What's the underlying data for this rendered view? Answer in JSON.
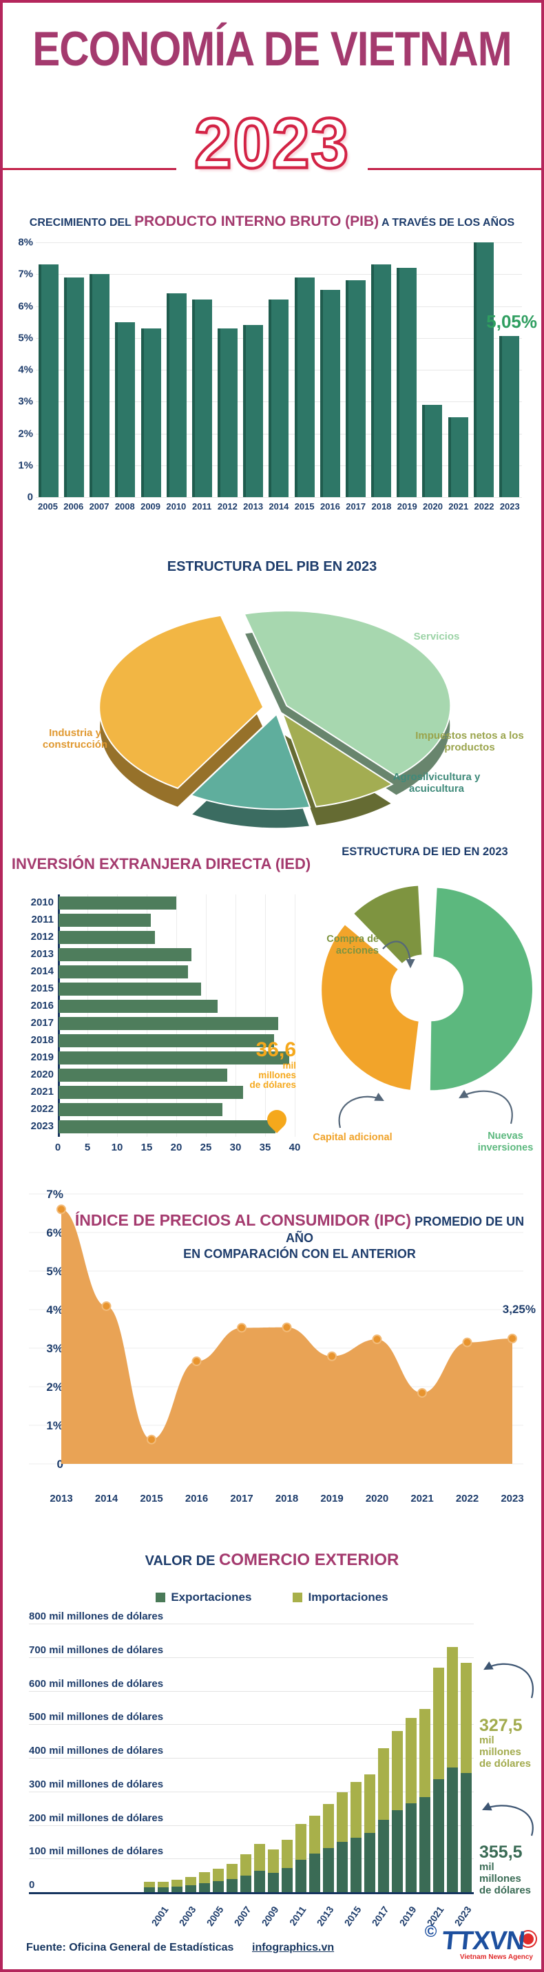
{
  "page": {
    "title": "ECONOMÍA DE VIETNAM",
    "year": "2023"
  },
  "colors": {
    "border": "#b4265c",
    "magenta": "#a43a6e",
    "navy": "#1d3c6b",
    "red_outline": "#d32345",
    "gdp_bar": "#2e7767",
    "ied_bar": "#4e7d5c",
    "orange": "#f5a81c",
    "olive": "#a8b04a",
    "green": "#5cb87e",
    "export_green": "#3a6b55",
    "area_orange": "#e9a355",
    "dot_orange": "#e8942e",
    "growth_green": "#2f9e60"
  },
  "chart_data": [
    {
      "id": "pib_growth",
      "type": "bar",
      "title_prefix": "CRECIMIENTO DEL ",
      "title_highlight": "PRODUCTO INTERNO BRUTO (PIB)",
      "title_suffix": " A TRAVÉS DE LOS AÑOS",
      "categories": [
        "2005",
        "2006",
        "2007",
        "2008",
        "2009",
        "2010",
        "2011",
        "2012",
        "2013",
        "2014",
        "2015",
        "2016",
        "2017",
        "2018",
        "2019",
        "2020",
        "2021",
        "2022",
        "2023"
      ],
      "values": [
        7.3,
        6.9,
        7.0,
        5.5,
        5.3,
        6.4,
        6.2,
        5.3,
        5.4,
        6.2,
        6.9,
        6.5,
        6.8,
        7.3,
        7.2,
        2.9,
        2.5,
        8.0,
        5.05
      ],
      "ylim": [
        0,
        8
      ],
      "grid": true,
      "yticks": [
        "8%",
        "7%",
        "6%",
        "5%",
        "4%",
        "3%",
        "2%",
        "1%",
        "0"
      ],
      "annotation": {
        "text": "5,05%"
      }
    },
    {
      "id": "pib_structure",
      "type": "pie",
      "title": "ESTRUCTURA DEL PIB EN 2023",
      "slices": [
        {
          "label": "Servicios",
          "value": 42.5,
          "color": "#a7d7af",
          "label_color": "#9cd3a6"
        },
        {
          "label": "Impuestos netos a los productos",
          "value": 8.4,
          "color": "#a3ad52",
          "label_color": "#9aa44c"
        },
        {
          "label": "Agrosilvicultura y acuicultura",
          "value": 12.0,
          "color": "#5fae9d",
          "label_color": "#3f8a7a"
        },
        {
          "label": "Industria y construcción",
          "value": 37.1,
          "color": "#f2b644",
          "label_color": "#e0982f"
        }
      ]
    },
    {
      "id": "ied",
      "type": "bar",
      "orientation": "horizontal",
      "title": "INVERSIÓN EXTRANJERA DIRECTA (IED)",
      "categories": [
        "2010",
        "2011",
        "2012",
        "2013",
        "2014",
        "2015",
        "2016",
        "2017",
        "2018",
        "2019",
        "2020",
        "2021",
        "2022",
        "2023"
      ],
      "values": [
        19.9,
        15.6,
        16.3,
        22.4,
        21.9,
        24.1,
        26.9,
        37.1,
        36.4,
        38.9,
        28.5,
        31.2,
        27.7,
        36.6
      ],
      "xlim": [
        0,
        40
      ],
      "xticks": [
        "0",
        "5",
        "10",
        "15",
        "20",
        "25",
        "30",
        "35",
        "40"
      ],
      "annotation": {
        "value": "36,6",
        "unit_lines": [
          "mil",
          "millones",
          "de dólares"
        ]
      }
    },
    {
      "id": "ied_structure",
      "type": "pie",
      "title": "ESTRUCTURA DE IED EN 2023",
      "donut": true,
      "slices": [
        {
          "label": "Nuevas inversiones",
          "value": 52,
          "color": "#5cb87e",
          "label_color": "#5cb87e"
        },
        {
          "label": "Capital adicional",
          "value": 36,
          "color": "#f2a42a",
          "label_color": "#f0a32a"
        },
        {
          "label": "Compra de acciones",
          "value": 12,
          "color": "#7e9440",
          "label_color": "#7e9440"
        }
      ]
    },
    {
      "id": "ipc",
      "type": "area",
      "title_highlight": "ÍNDICE DE PRECIOS AL CONSUMIDOR (IPC)",
      "title_suffix": " PROMEDIO DE UN AÑO",
      "title_line2": "EN COMPARACIÓN CON EL ANTERIOR",
      "x": [
        "2013",
        "2014",
        "2015",
        "2016",
        "2017",
        "2018",
        "2019",
        "2020",
        "2021",
        "2022",
        "2023"
      ],
      "values": [
        6.6,
        4.09,
        0.63,
        2.66,
        3.53,
        3.54,
        2.79,
        3.23,
        1.84,
        3.15,
        3.25
      ],
      "ylim": [
        0,
        7
      ],
      "grid": true,
      "yticks": [
        "7%",
        "6%",
        "5%",
        "4%",
        "3%",
        "2%",
        "1%",
        "0"
      ],
      "annotation": {
        "text": "3,25%"
      }
    },
    {
      "id": "comercio",
      "type": "bar",
      "stacked": true,
      "title_prefix": "VALOR DE ",
      "title_highlight": "COMERCIO EXTERIOR",
      "categories": [
        "2000",
        "2001",
        "2002",
        "2003",
        "2004",
        "2005",
        "2006",
        "2007",
        "2008",
        "2009",
        "2010",
        "2011",
        "2012",
        "2013",
        "2014",
        "2015",
        "2016",
        "2017",
        "2018",
        "2019",
        "2020",
        "2021",
        "2022",
        "2023"
      ],
      "series": [
        {
          "name": "Exportaciones",
          "color": "#3a6b55",
          "values": [
            14.5,
            15.0,
            16.7,
            20.1,
            26.5,
            32.4,
            39.8,
            48.6,
            62.7,
            57.1,
            72.2,
            96.9,
            114.5,
            132.0,
            150.2,
            162.0,
            176.6,
            215.1,
            243.7,
            264.2,
            282.7,
            336.3,
            371.3,
            355.5
          ]
        },
        {
          "name": "Importaciones",
          "color": "#a8b04a",
          "values": [
            15.6,
            16.2,
            19.7,
            25.3,
            32.0,
            36.8,
            44.9,
            62.8,
            80.7,
            69.9,
            84.8,
            106.7,
            113.8,
            132.0,
            147.8,
            165.8,
            174.8,
            213.2,
            236.7,
            253.4,
            262.7,
            332.8,
            358.9,
            327.5
          ]
        }
      ],
      "ylim": [
        0,
        800
      ],
      "yticks": [
        "800 mil millones de dólares",
        "700 mil millones de dólares",
        "600 mil millones de dólares",
        "500 mil millones de dólares",
        "400 mil millones de dólares",
        "300 mil millones de dólares",
        "200 mil millones de dólares",
        "100 mil millones de dólares",
        "0"
      ],
      "xticklabels": [
        "2001",
        "2003",
        "2005",
        "2007",
        "2009",
        "2011",
        "2013",
        "2015",
        "2017",
        "2019",
        "2021",
        "2023"
      ],
      "annotations": [
        {
          "value": "327,5",
          "unit_lines": [
            "mil",
            "millones",
            "de dólares"
          ],
          "series": "Importaciones"
        },
        {
          "value": "355,5",
          "unit_lines": [
            "mil",
            "millones",
            "de dólares"
          ],
          "series": "Exportaciones"
        }
      ]
    }
  ],
  "footer": {
    "source": "Fuente: Oficina General de Estadísticas",
    "website": "infographics.vn",
    "copyright": "©",
    "agency": "TTXVN",
    "agency_sub": "Vietnam News Agency"
  }
}
